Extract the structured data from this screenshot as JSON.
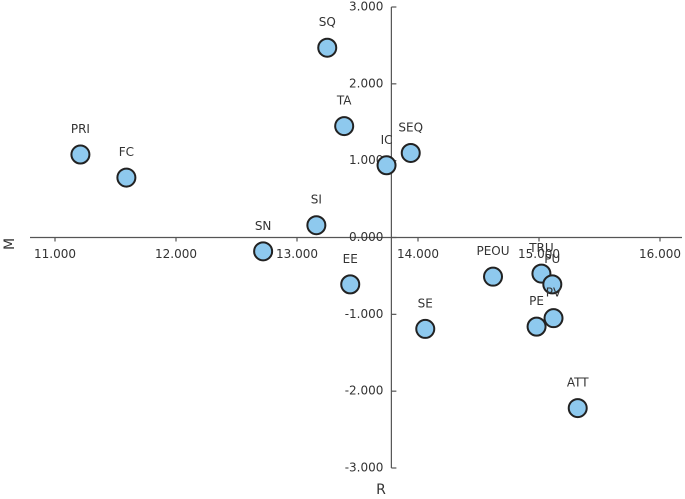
{
  "chart_data": {
    "type": "scatter",
    "x_label": "R",
    "y_label": "M",
    "labels": [
      "PRI",
      "FC",
      "SQ",
      "TA",
      "IC",
      "SEQ",
      "SI",
      "SN",
      "EE",
      "SE",
      "PEOU",
      "TRU",
      "PU",
      "PE",
      "PV",
      "ATT"
    ],
    "x": [
      11.21,
      11.59,
      13.25,
      13.39,
      13.74,
      13.94,
      13.16,
      12.72,
      13.44,
      14.06,
      14.62,
      15.02,
      15.11,
      14.98,
      15.12,
      15.32
    ],
    "y": [
      1.08,
      0.78,
      2.47,
      1.45,
      0.94,
      1.1,
      0.16,
      -0.18,
      -0.61,
      -1.19,
      -0.51,
      -0.47,
      -0.61,
      -1.16,
      -1.05,
      -2.22
    ],
    "color": "#8ec9ee",
    "xlim": [
      11,
      16
    ],
    "ylim": [
      -3,
      3
    ],
    "y_axis_crossing": 13.78,
    "xticks": [
      {
        "value": 11,
        "label": "11.000"
      },
      {
        "value": 12,
        "label": "12.000"
      },
      {
        "value": 13,
        "label": "13.000"
      },
      {
        "value": 14,
        "label": "14.000"
      },
      {
        "value": 15,
        "label": "15.000"
      },
      {
        "value": 16,
        "label": "16.000"
      }
    ],
    "yticks": [
      {
        "value": 3,
        "label": "3.000"
      },
      {
        "value": 2,
        "label": "2.000"
      },
      {
        "value": 1,
        "label": "1.000"
      },
      {
        "value": 0,
        "label": "0.000"
      },
      {
        "value": -1,
        "label": "-1.000"
      },
      {
        "value": -2,
        "label": "-2.000"
      },
      {
        "value": -3,
        "label": "-3.000"
      }
    ]
  }
}
